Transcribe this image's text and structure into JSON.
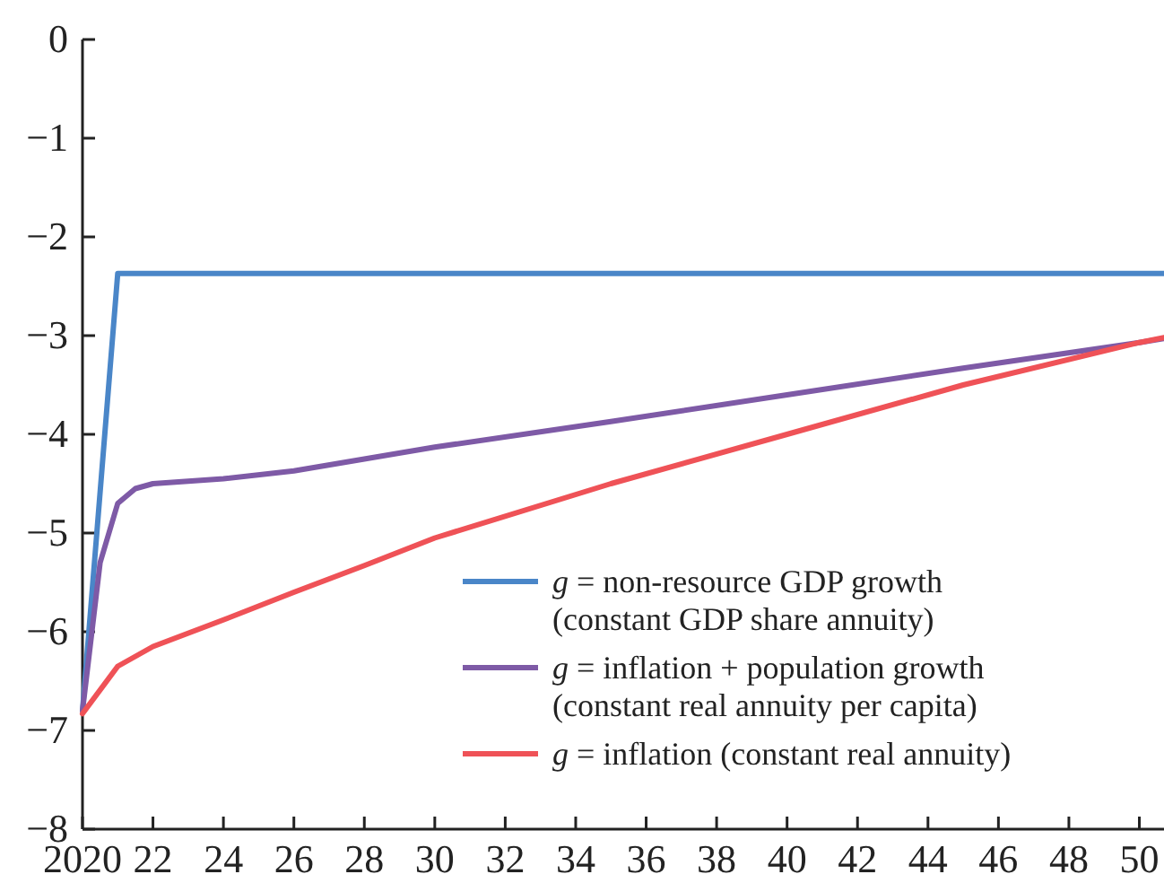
{
  "chart_data": {
    "type": "line",
    "xlim": [
      2020,
      2050.7
    ],
    "xticks": [
      {
        "value": 2020,
        "label": "2020"
      },
      {
        "value": 2022,
        "label": "22"
      },
      {
        "value": 2024,
        "label": "24"
      },
      {
        "value": 2026,
        "label": "26"
      },
      {
        "value": 2028,
        "label": "28"
      },
      {
        "value": 2030,
        "label": "30"
      },
      {
        "value": 2032,
        "label": "32"
      },
      {
        "value": 2034,
        "label": "34"
      },
      {
        "value": 2036,
        "label": "36"
      },
      {
        "value": 2038,
        "label": "38"
      },
      {
        "value": 2040,
        "label": "40"
      },
      {
        "value": 2042,
        "label": "42"
      },
      {
        "value": 2044,
        "label": "44"
      },
      {
        "value": 2046,
        "label": "46"
      },
      {
        "value": 2048,
        "label": "48"
      },
      {
        "value": 2050,
        "label": "50"
      }
    ],
    "ylim": [
      -8,
      0
    ],
    "yticks": [
      {
        "value": -8,
        "label": "−8"
      },
      {
        "value": -7,
        "label": "−7"
      },
      {
        "value": -6,
        "label": "−6"
      },
      {
        "value": -5,
        "label": "−5"
      },
      {
        "value": -4,
        "label": "−4"
      },
      {
        "value": -3,
        "label": "−3"
      },
      {
        "value": -2,
        "label": "−2"
      },
      {
        "value": -1,
        "label": "−1"
      },
      {
        "value": 0,
        "label": "0"
      }
    ],
    "grid": false,
    "legend": "bottom right",
    "line_style": "solid",
    "marker": "none",
    "series": [
      {
        "name": "g = non-resource GDP growth\n(constant GDP share annuity)",
        "color": "#4a86c8",
        "x": [
          2020,
          2021,
          2050.7
        ],
        "values": [
          -6.8,
          -2.37,
          -2.37
        ]
      },
      {
        "name": "g = inflation + population growth\n(constant real annuity per capita)",
        "color": "#7e5aa6",
        "x": [
          2020,
          2020.5,
          2021,
          2021.5,
          2022,
          2024,
          2026,
          2028,
          2030,
          2035,
          2040,
          2045,
          2050,
          2050.7
        ],
        "values": [
          -6.8,
          -5.3,
          -4.7,
          -4.55,
          -4.5,
          -4.45,
          -4.37,
          -4.25,
          -4.13,
          -3.87,
          -3.6,
          -3.33,
          -3.07,
          -3.03
        ]
      },
      {
        "name": "g = inflation (constant real annuity)",
        "color": "#ef5257",
        "x": [
          2020,
          2021,
          2022,
          2024,
          2026,
          2028,
          2030,
          2035,
          2040,
          2045,
          2050,
          2050.7
        ],
        "values": [
          -6.83,
          -6.35,
          -6.15,
          -5.88,
          -5.6,
          -5.33,
          -5.05,
          -4.5,
          -4.0,
          -3.5,
          -3.07,
          -3.02
        ]
      }
    ]
  }
}
